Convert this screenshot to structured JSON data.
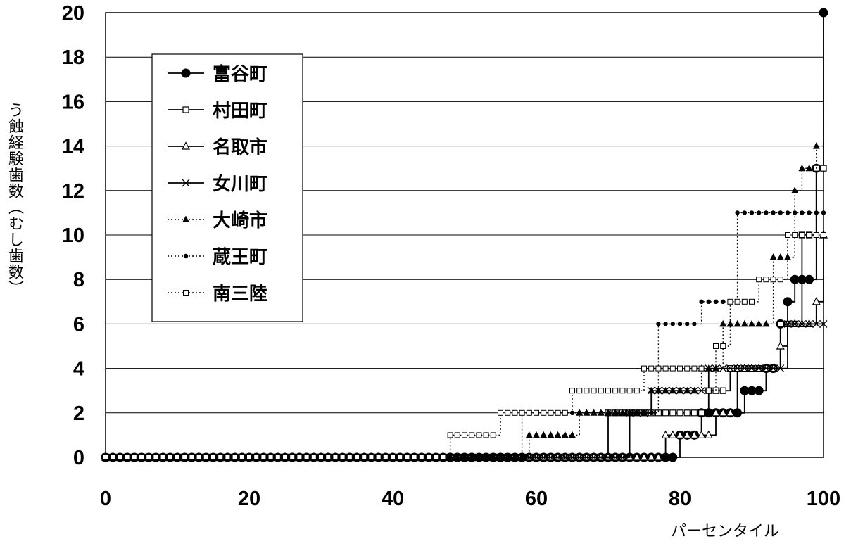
{
  "chart_data": {
    "type": "line",
    "title": "",
    "xlabel": "パーセンタイル",
    "ylabel": "う蝕経験歯数（むし歯数）",
    "xlim": [
      0,
      100
    ],
    "ylim": [
      0,
      20
    ],
    "x_ticks": [
      0,
      20,
      40,
      60,
      80,
      100
    ],
    "y_ticks": [
      0,
      2,
      4,
      6,
      8,
      10,
      12,
      14,
      16,
      18,
      20
    ],
    "grid": "horizontal",
    "legend_position": "top-left",
    "series": [
      {
        "name": "富谷町",
        "marker": "circle-filled",
        "line": "solid",
        "steps": [
          [
            0,
            0
          ],
          [
            80,
            1
          ],
          [
            83,
            2
          ],
          [
            89,
            3
          ],
          [
            92,
            4
          ],
          [
            94,
            6
          ],
          [
            95,
            7
          ],
          [
            96,
            8
          ],
          [
            99,
            13
          ],
          [
            100,
            20
          ]
        ]
      },
      {
        "name": "村田町",
        "marker": "square-open",
        "line": "solid",
        "steps": [
          [
            0,
            0
          ],
          [
            70,
            2
          ],
          [
            84,
            3
          ],
          [
            87,
            4
          ],
          [
            94,
            6
          ],
          [
            97,
            10
          ],
          [
            99,
            13
          ]
        ]
      },
      {
        "name": "名取市",
        "marker": "triangle-open",
        "line": "solid",
        "steps": [
          [
            0,
            0
          ],
          [
            78,
            1
          ],
          [
            85,
            2
          ],
          [
            88,
            4
          ],
          [
            94,
            5
          ],
          [
            95,
            6
          ],
          [
            99,
            7
          ],
          [
            100,
            10
          ]
        ]
      },
      {
        "name": "女川町",
        "marker": "x",
        "line": "solid",
        "steps": [
          [
            0,
            0
          ],
          [
            73,
            2
          ],
          [
            76,
            3
          ],
          [
            84,
            4
          ],
          [
            95,
            6
          ]
        ]
      },
      {
        "name": "大崎市",
        "marker": "triangle-filled",
        "line": "dotted",
        "steps": [
          [
            0,
            0
          ],
          [
            59,
            1
          ],
          [
            66,
            2
          ],
          [
            76,
            3
          ],
          [
            83,
            4
          ],
          [
            86,
            6
          ],
          [
            93,
            9
          ],
          [
            96,
            12
          ],
          [
            97,
            13
          ],
          [
            99,
            14
          ],
          [
            100,
            20
          ]
        ]
      },
      {
        "name": "蔵王町",
        "marker": "circle-small",
        "line": "dotted",
        "steps": [
          [
            0,
            0
          ],
          [
            58,
            2
          ],
          [
            77,
            6
          ],
          [
            83,
            7
          ],
          [
            88,
            11
          ]
        ]
      },
      {
        "name": "南三陸",
        "marker": "square-small-open",
        "line": "dotted",
        "steps": [
          [
            0,
            0
          ],
          [
            48,
            1
          ],
          [
            55,
            2
          ],
          [
            65,
            3
          ],
          [
            75,
            4
          ],
          [
            84,
            3
          ],
          [
            85,
            5
          ],
          [
            87,
            7
          ],
          [
            91,
            8
          ],
          [
            95,
            10
          ]
        ]
      }
    ]
  }
}
